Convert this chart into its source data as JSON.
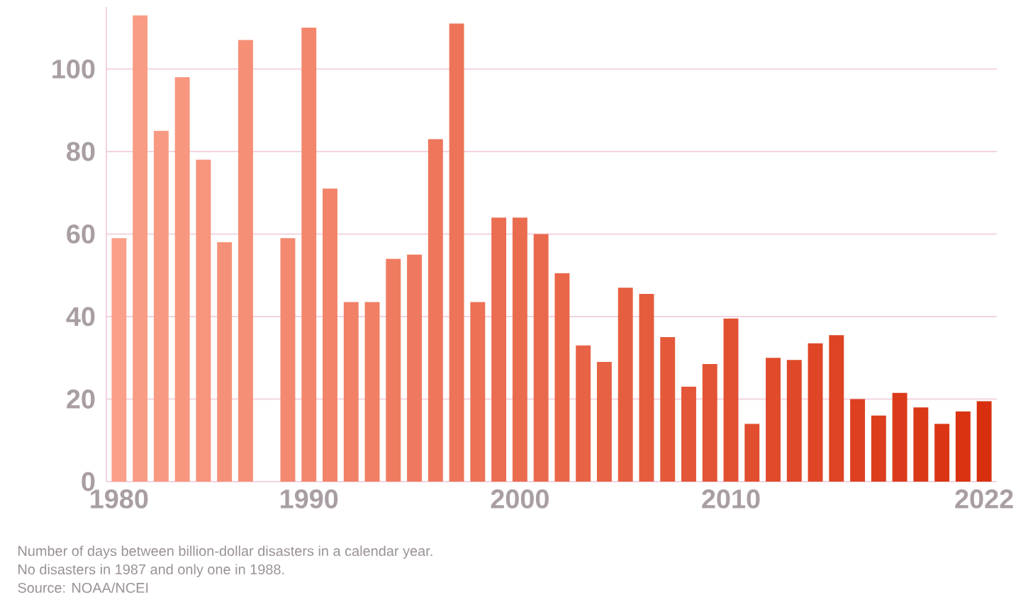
{
  "chart_data": {
    "type": "bar",
    "categories": [
      "1980",
      null,
      null,
      null,
      null,
      null,
      null,
      null,
      null,
      "1990",
      null,
      null,
      null,
      null,
      null,
      null,
      null,
      null,
      null,
      "2000",
      null,
      null,
      null,
      null,
      null,
      null,
      null,
      null,
      null,
      "2010",
      null,
      null,
      null,
      null,
      null,
      null,
      null,
      null,
      null,
      null,
      null,
      "2022"
    ],
    "values": [
      59,
      113,
      85,
      98,
      78,
      58,
      107,
      null,
      59,
      110,
      71,
      43.5,
      43.5,
      54,
      55,
      83,
      111,
      43.5,
      64,
      64,
      60,
      50.5,
      33,
      29,
      47,
      45.5,
      35,
      23,
      28.5,
      39.5,
      14,
      30,
      29.5,
      33.5,
      35.5,
      20,
      16,
      21.5,
      18,
      14,
      17,
      19.5
    ],
    "colors": [
      "#fa9f88",
      "#f99c85",
      "#f89a82",
      "#f8977f",
      "#f7947c",
      "#f69179",
      "#f58f76",
      null,
      "#f38970",
      "#f3876d",
      "#f2846a",
      "#f18167",
      "#f07f64",
      "#ef7c61",
      "#ee795e",
      "#ee765b",
      "#ed7458",
      "#ec7155",
      "#eb6e52",
      "#ea6c4f",
      "#e9694c",
      "#e96649",
      "#e86346",
      "#e76143",
      "#e65e40",
      "#e55b3d",
      "#e4593a",
      "#e45638",
      "#e35335",
      "#e25032",
      "#e14e2f",
      "#e04b2c",
      "#df4829",
      "#df4626",
      "#de4323",
      "#dd4020",
      "#dc3d1d",
      "#db3b1a",
      "#da3817",
      "#da3514",
      "#d93311",
      "#d8300e"
    ],
    "ylim": [
      0,
      115
    ],
    "yticks": [
      0,
      20,
      40,
      60,
      80,
      100
    ],
    "grid": "y",
    "annotations": [
      "Number of days between billion-dollar disasters in a calendar year.",
      "No disasters in 1987 and only one in 1988.",
      "Source: NOAA/NCEI"
    ]
  }
}
